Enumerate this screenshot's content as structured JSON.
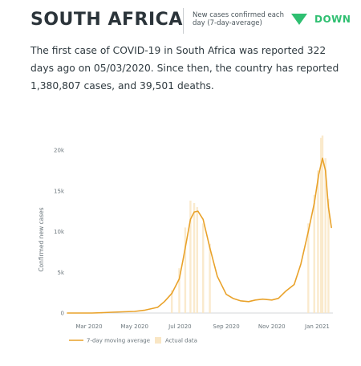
{
  "header": {
    "country": "SOUTH AFRICA",
    "metric_label": "New cases confirmed each day (7-day-average)",
    "trend_label": "DOWN",
    "trend_color": "#2fbf71",
    "trend_icon": "triangle-down-icon"
  },
  "summary": {
    "text": "The first case of COVID-19 in South Africa was reported 322 days ago on 05/03/2020. Since then, the country has reported 1,380,807 cases, and 39,501 deaths."
  },
  "chart_data": {
    "type": "line",
    "ylabel": "Confirmed new cases",
    "ylim": [
      0,
      20000
    ],
    "yticks": [
      0,
      5000,
      10000,
      15000,
      20000
    ],
    "ytick_labels": [
      "0",
      "5k",
      "10k",
      "15k",
      "20k"
    ],
    "xlim": [
      "2020-02-01",
      "2021-01-22"
    ],
    "xticks": [
      "2020-03-01",
      "2020-05-01",
      "2020-07-01",
      "2020-09-01",
      "2020-11-01",
      "2021-01-01"
    ],
    "xtick_labels": [
      "Mar 2020",
      "May 2020",
      "Jul 2020",
      "Sep 2020",
      "Nov 2020",
      "Jan 2021"
    ],
    "grid": false,
    "legend_position": "bottom-left",
    "line_color": "#e9a22a",
    "bar_color": "#f9e6c4",
    "series": [
      {
        "name": "7-day moving average",
        "x": [
          "2020-03-05",
          "2020-03-20",
          "2020-04-01",
          "2020-04-15",
          "2020-05-01",
          "2020-05-15",
          "2020-06-01",
          "2020-06-10",
          "2020-06-20",
          "2020-06-30",
          "2020-07-05",
          "2020-07-10",
          "2020-07-15",
          "2020-07-20",
          "2020-07-25",
          "2020-08-01",
          "2020-08-10",
          "2020-08-20",
          "2020-09-01",
          "2020-09-10",
          "2020-09-20",
          "2020-10-01",
          "2020-10-10",
          "2020-10-20",
          "2020-11-01",
          "2020-11-10",
          "2020-11-20",
          "2020-12-01",
          "2020-12-10",
          "2020-12-20",
          "2020-12-28",
          "2021-01-03",
          "2021-01-08",
          "2021-01-12",
          "2021-01-16",
          "2021-01-20"
        ],
        "y": [
          0,
          50,
          100,
          150,
          200,
          350,
          700,
          1400,
          2400,
          4200,
          6500,
          9000,
          11500,
          12400,
          12500,
          11500,
          8000,
          4500,
          2300,
          1800,
          1500,
          1400,
          1600,
          1700,
          1600,
          1800,
          2700,
          3500,
          6000,
          10000,
          13500,
          17000,
          19000,
          17500,
          13000,
          10500
        ]
      },
      {
        "name": "Actual data",
        "x": [
          "2020-06-20",
          "2020-06-30",
          "2020-07-08",
          "2020-07-15",
          "2020-07-20",
          "2020-07-24",
          "2020-08-01",
          "2020-08-10",
          "2020-12-20",
          "2020-12-28",
          "2021-01-02",
          "2021-01-06",
          "2021-01-08",
          "2021-01-12",
          "2021-01-16"
        ],
        "y": [
          2800,
          5500,
          10500,
          13800,
          13500,
          13000,
          11000,
          8500,
          11000,
          14500,
          17500,
          21500,
          21800,
          19000,
          14000
        ]
      }
    ]
  }
}
